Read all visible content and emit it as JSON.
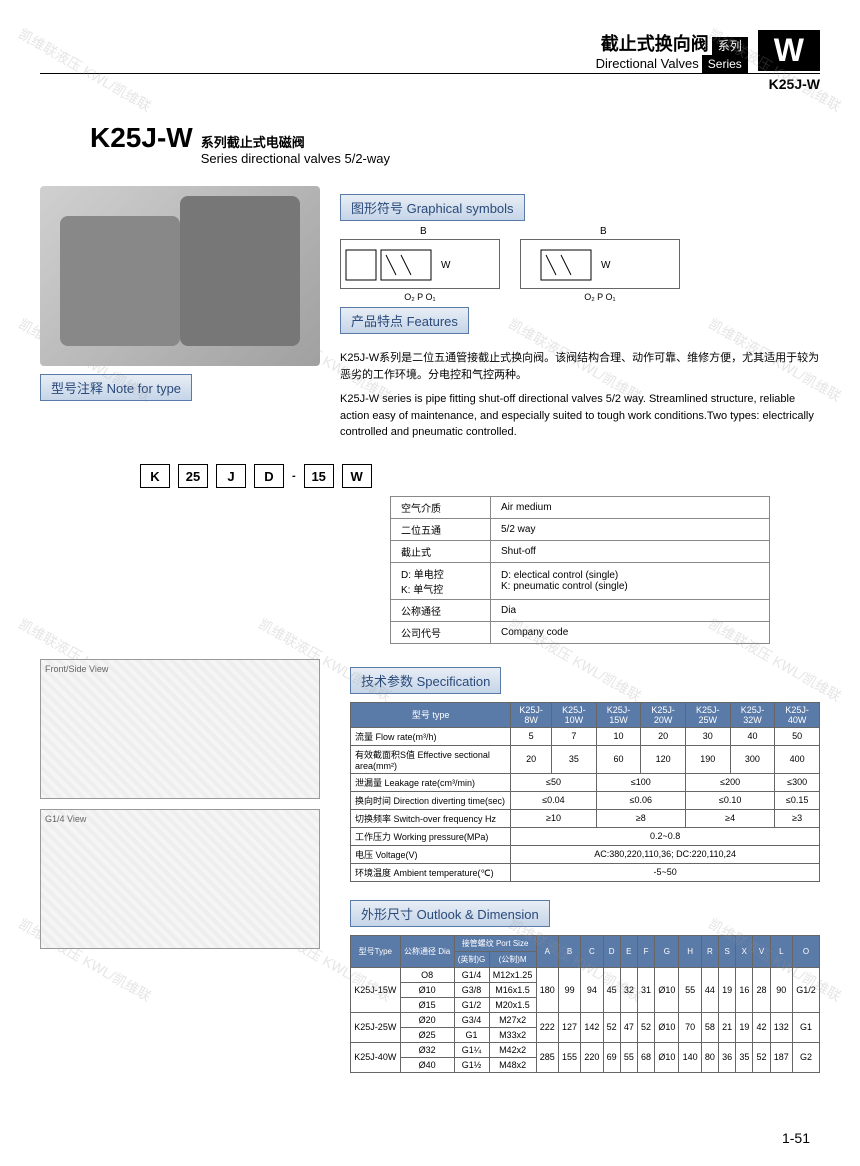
{
  "header": {
    "title_cn": "截止式换向阀",
    "title_en": "Directional Valves",
    "series_cn": "系列",
    "series_en": "Series",
    "w_badge": "W",
    "model": "K25J-W"
  },
  "main_title": {
    "code": "K25J-W",
    "sub_cn": "系列截止式电磁阀",
    "sub_en": "Series directional valves 5/2-way"
  },
  "sections": {
    "graphical": "图形符号 Graphical symbols",
    "features": "产品特点 Features",
    "note_type": "型号注释 Note for type",
    "spec": "技术参数 Specification",
    "outlook": "外形尺寸 Outlook & Dimension"
  },
  "features": {
    "cn": "K25J-W系列是二位五通管接截止式换向阀。该阀结构合理、动作可靠、维修方便，尤其适用于较为恶劣的工作环境。分电控和气控两种。",
    "en": "K25J-W series is pipe fitting shut-off directional valves 5/2 way. Streamlined structure, reliable action easy of maintenance, and especially suited to tough work conditions.Two types: electrically controlled and pneumatic controlled."
  },
  "type_codes": [
    "K",
    "25",
    "J",
    "D",
    "15",
    "W"
  ],
  "type_table": [
    {
      "cn": "空气介质",
      "en": "Air medium"
    },
    {
      "cn": "二位五通",
      "en": "5/2 way"
    },
    {
      "cn": "截止式",
      "en": "Shut-off"
    },
    {
      "cn": "D: 单电控\nK: 单气控",
      "en": "D: electical control (single)\nK: pneumatic control (single)"
    },
    {
      "cn": "公称通径",
      "en": "Dia"
    },
    {
      "cn": "公司代号",
      "en": "Company code"
    }
  ],
  "spec_table": {
    "header_row1": [
      "型号 type",
      "K25J-8W",
      "K25J-10W",
      "K25J-15W",
      "K25J-20W",
      "K25J-25W",
      "K25J-32W",
      "K25J-40W"
    ],
    "header_row2": "参数 Item",
    "rows": [
      {
        "label": "流量 Flow rate(m³/h)",
        "vals": [
          "5",
          "7",
          "10",
          "20",
          "30",
          "40",
          "50"
        ]
      },
      {
        "label": "有效截面积S值 Effective sectional area(mm²)",
        "vals": [
          "20",
          "35",
          "60",
          "120",
          "190",
          "300",
          "400"
        ]
      },
      {
        "label": "泄漏量 Leakage rate(cm³/min)",
        "vals": [
          {
            "span": 2,
            "v": "≤50"
          },
          {
            "span": 2,
            "v": "≤100"
          },
          {
            "span": 2,
            "v": "≤200"
          },
          {
            "span": 1,
            "v": "≤300"
          }
        ]
      },
      {
        "label": "换向时间 Direction diverting time(sec)",
        "vals": [
          {
            "span": 2,
            "v": "≤0.04"
          },
          {
            "span": 2,
            "v": "≤0.06"
          },
          {
            "span": 2,
            "v": "≤0.10"
          },
          {
            "span": 1,
            "v": "≤0.15"
          }
        ]
      },
      {
        "label": "切换频率 Switch-over frequency Hz",
        "vals": [
          {
            "span": 2,
            "v": "≥10"
          },
          {
            "span": 2,
            "v": "≥8"
          },
          {
            "span": 2,
            "v": "≥4"
          },
          {
            "span": 1,
            "v": "≥3"
          }
        ]
      },
      {
        "label": "工作压力 Working pressure(MPa)",
        "vals": [
          {
            "span": 7,
            "v": "0.2~0.8"
          }
        ]
      },
      {
        "label": "电压 Voltage(V)",
        "vals": [
          {
            "span": 7,
            "v": "AC:380,220,110,36; DC:220,110,24"
          }
        ]
      },
      {
        "label": "环境温度 Ambient temperature(℃)",
        "vals": [
          {
            "span": 7,
            "v": "-5~50"
          }
        ]
      }
    ]
  },
  "dim_table": {
    "headers": [
      "型号Type",
      "公称通径 Dia",
      "(英制)G",
      "(公制)M",
      "A",
      "B",
      "C",
      "D",
      "E",
      "F",
      "G",
      "H",
      "R",
      "S",
      "X",
      "V",
      "L",
      "O"
    ],
    "port_header": "接管螺纹 Port Size",
    "rows": [
      {
        "type": "K25J-15W",
        "dia": [
          "O8",
          "Ø10",
          "Ø15"
        ],
        "g": [
          "G1/4",
          "G3/8",
          "G1/2"
        ],
        "m": [
          "M12x1.25",
          "M16x1.5",
          "M20x1.5"
        ],
        "dims": [
          "180",
          "99",
          "94",
          "45",
          "32",
          "31",
          "Ø10",
          "55",
          "44",
          "19",
          "16",
          "28",
          "90",
          "G1/2"
        ]
      },
      {
        "type": "K25J-25W",
        "dia": [
          "Ø20",
          "Ø25"
        ],
        "g": [
          "G3/4",
          "G1"
        ],
        "m": [
          "M27x2",
          "M33x2"
        ],
        "dims": [
          "222",
          "127",
          "142",
          "52",
          "47",
          "52",
          "Ø10",
          "70",
          "58",
          "21",
          "19",
          "42",
          "132",
          "G1"
        ]
      },
      {
        "type": "K25J-40W",
        "dia": [
          "Ø32",
          "Ø40"
        ],
        "g": [
          "G1¼",
          "G1½"
        ],
        "m": [
          "M42x2",
          "M48x2"
        ],
        "dims": [
          "285",
          "155",
          "220",
          "69",
          "55",
          "68",
          "Ø10",
          "140",
          "80",
          "36",
          "35",
          "52",
          "187",
          "G2"
        ]
      }
    ]
  },
  "page_num": "1-51",
  "watermark": "凯维联液压 KWL/凯维联",
  "colors": {
    "header_bg": "#5a7aa8",
    "label_border": "#5a7aa8",
    "text": "#000000"
  }
}
